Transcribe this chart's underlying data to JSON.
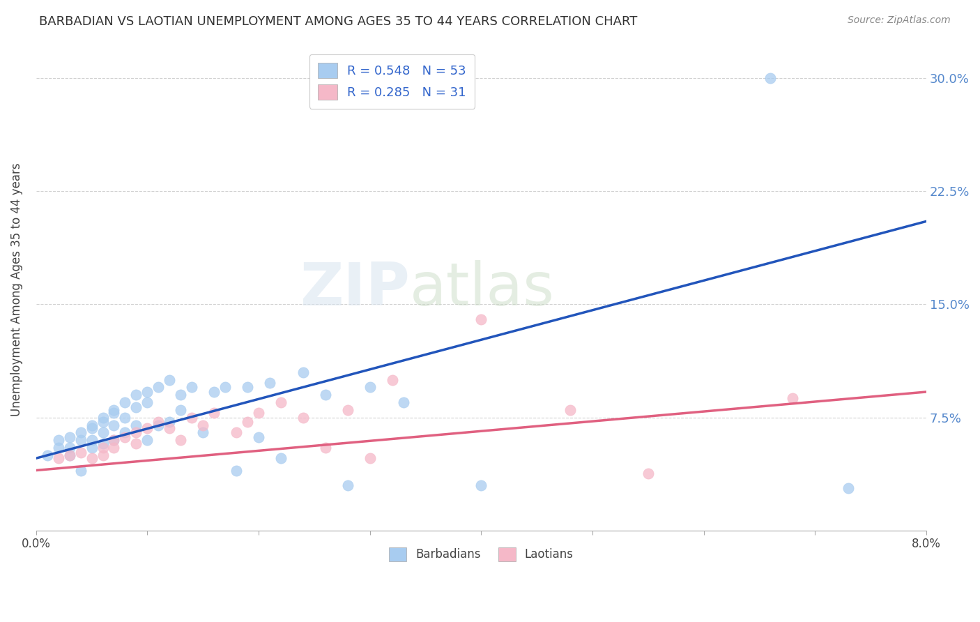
{
  "title": "BARBADIAN VS LAOTIAN UNEMPLOYMENT AMONG AGES 35 TO 44 YEARS CORRELATION CHART",
  "source": "Source: ZipAtlas.com",
  "ylabel": "Unemployment Among Ages 35 to 44 years",
  "right_yticks": [
    0.075,
    0.15,
    0.225,
    0.3
  ],
  "right_yticklabels": [
    "7.5%",
    "15.0%",
    "22.5%",
    "30.0%"
  ],
  "xlim": [
    0.0,
    0.08
  ],
  "ylim": [
    0.0,
    0.32
  ],
  "barbadian_color": "#A8CCF0",
  "laotian_color": "#F5B8C8",
  "barbadian_line_color": "#2255BB",
  "laotian_line_color": "#E06080",
  "legend_R1": "R = 0.548",
  "legend_N1": "N = 53",
  "legend_R2": "R = 0.285",
  "legend_N2": "N = 31",
  "legend_label1": "Barbadians",
  "legend_label2": "Laotians",
  "watermark_zip": "ZIP",
  "watermark_atlas": "atlas",
  "blue_line_x0": 0.0,
  "blue_line_y0": 0.048,
  "blue_line_x1": 0.08,
  "blue_line_y1": 0.205,
  "pink_line_x0": 0.0,
  "pink_line_y0": 0.04,
  "pink_line_x1": 0.08,
  "pink_line_y1": 0.092,
  "grid_color": "#CCCCCC",
  "background_color": "#FFFFFF",
  "barbadian_x": [
    0.001,
    0.002,
    0.002,
    0.003,
    0.003,
    0.003,
    0.004,
    0.004,
    0.004,
    0.005,
    0.005,
    0.005,
    0.005,
    0.006,
    0.006,
    0.006,
    0.006,
    0.007,
    0.007,
    0.007,
    0.007,
    0.008,
    0.008,
    0.008,
    0.009,
    0.009,
    0.009,
    0.01,
    0.01,
    0.01,
    0.011,
    0.011,
    0.012,
    0.012,
    0.013,
    0.013,
    0.014,
    0.015,
    0.016,
    0.017,
    0.018,
    0.019,
    0.02,
    0.021,
    0.022,
    0.024,
    0.026,
    0.028,
    0.03,
    0.033,
    0.04,
    0.066,
    0.073
  ],
  "barbadian_y": [
    0.05,
    0.055,
    0.06,
    0.05,
    0.062,
    0.055,
    0.065,
    0.06,
    0.04,
    0.068,
    0.06,
    0.07,
    0.055,
    0.075,
    0.072,
    0.065,
    0.058,
    0.078,
    0.08,
    0.07,
    0.06,
    0.085,
    0.075,
    0.065,
    0.09,
    0.082,
    0.07,
    0.092,
    0.085,
    0.06,
    0.095,
    0.07,
    0.1,
    0.072,
    0.09,
    0.08,
    0.095,
    0.065,
    0.092,
    0.095,
    0.04,
    0.095,
    0.062,
    0.098,
    0.048,
    0.105,
    0.09,
    0.03,
    0.095,
    0.085,
    0.03,
    0.3,
    0.028
  ],
  "laotian_x": [
    0.002,
    0.003,
    0.004,
    0.005,
    0.006,
    0.006,
    0.007,
    0.007,
    0.008,
    0.009,
    0.009,
    0.01,
    0.011,
    0.012,
    0.013,
    0.014,
    0.015,
    0.016,
    0.018,
    0.019,
    0.02,
    0.022,
    0.024,
    0.026,
    0.028,
    0.03,
    0.032,
    0.04,
    0.048,
    0.055,
    0.068
  ],
  "laotian_y": [
    0.048,
    0.05,
    0.052,
    0.048,
    0.055,
    0.05,
    0.06,
    0.055,
    0.062,
    0.058,
    0.065,
    0.068,
    0.072,
    0.068,
    0.06,
    0.075,
    0.07,
    0.078,
    0.065,
    0.072,
    0.078,
    0.085,
    0.075,
    0.055,
    0.08,
    0.048,
    0.1,
    0.14,
    0.08,
    0.038,
    0.088
  ]
}
